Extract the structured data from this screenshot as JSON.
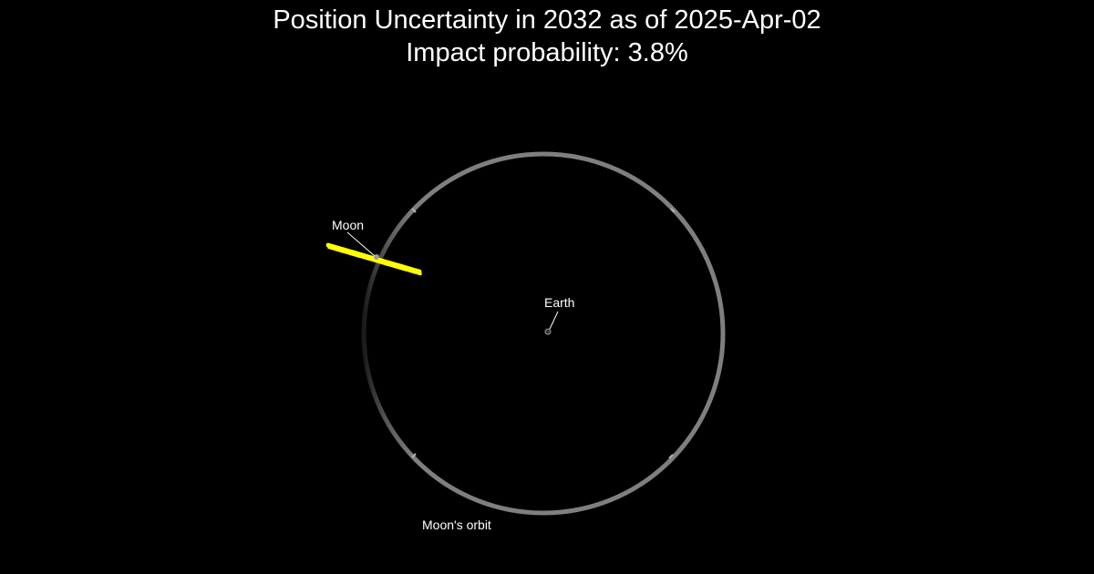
{
  "title": {
    "line1": "Position Uncertainty in 2032 as of 2025-Apr-02",
    "line2": "Impact probability: 3.8%"
  },
  "labels": {
    "moon": "Moon",
    "earth": "Earth",
    "moon_orbit": "Moon's orbit"
  },
  "colors": {
    "background": "#000000",
    "orbit": "#7f7f7f",
    "uncertainty": "#ffff00",
    "text": "#ffffff"
  }
}
